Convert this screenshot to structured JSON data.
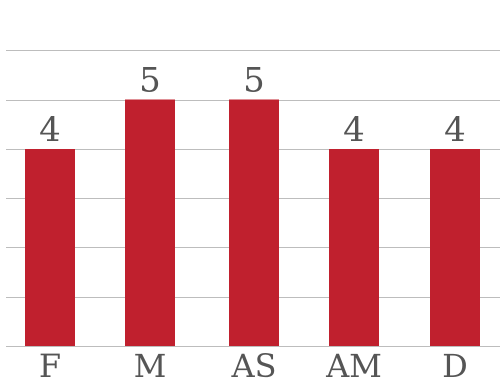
{
  "chart_data": {
    "type": "bar",
    "categories": [
      "F",
      "M",
      "AS",
      "AM",
      "D"
    ],
    "values": [
      4,
      5,
      5,
      4,
      4
    ],
    "ylim": [
      0,
      6
    ],
    "grid": true,
    "colors": {
      "bar": "#c0202e",
      "grid": "#bdbdbd",
      "text": "#555555"
    }
  }
}
